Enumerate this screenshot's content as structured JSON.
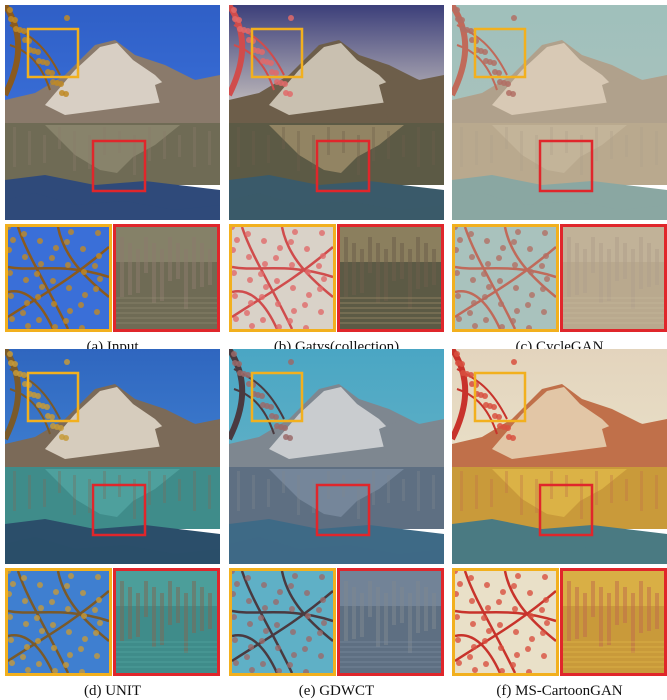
{
  "figure": {
    "captions": {
      "a": "(a) Input",
      "b": "(b) Gatys(collection)",
      "c": "(c) CycleGAN",
      "d": "(d) UNIT",
      "e": "(e) GDWCT",
      "f": "(f) MS-CartoonGAN"
    },
    "palettes": {
      "a": {
        "sky": "#3a6fd8",
        "skyTop": "#2f5fc6",
        "mount": "#d8cfc4",
        "mountShade": "#8a7a6b",
        "water": "#6f6b55",
        "reflect": "#8e8a70",
        "fore": "#2f4a7a",
        "tree": "#8a5a1e",
        "leaves": "#c08a25"
      },
      "b": {
        "sky": "#d9d2c8",
        "skyTop": "#3c3f7a",
        "mount": "#c9c0b0",
        "mountShade": "#6d5e4a",
        "water": "#5c5a45",
        "reflect": "#a08e6a",
        "fore": "#3a5a6a",
        "tree": "#d04c4c",
        "leaves": "#e06a6a"
      },
      "c": {
        "sky": "#a9c2bd",
        "skyTop": "#9fc0bb",
        "mount": "#d8c9b5",
        "mountShade": "#b0a18c",
        "water": "#b9a98e",
        "reflect": "#c5b79c",
        "fore": "#8aa7a2",
        "tree": "#c06a5a",
        "leaves": "#b26f64"
      },
      "d": {
        "sky": "#3f7fd0",
        "skyTop": "#2f66bf",
        "mount": "#d6ccbd",
        "mountShade": "#7b6a58",
        "water": "#3f8c8a",
        "reflect": "#53a5a1",
        "fore": "#2b4e6a",
        "tree": "#7a5a2a",
        "leaves": "#c59a3a"
      },
      "e": {
        "sky": "#5fb0c6",
        "skyTop": "#4aa6c4",
        "mount": "#c9cccf",
        "mountShade": "#7e8790",
        "water": "#5e6f82",
        "reflect": "#7a8ca0",
        "fore": "#3e6a86",
        "tree": "#4a3a40",
        "leaves": "#9a6a6a"
      },
      "f": {
        "sky": "#e9e0c8",
        "skyTop": "#e3d4bd",
        "mount": "#e2c6a6",
        "mountShade": "#c0704a",
        "water": "#c99a3a",
        "reflect": "#e0b84a",
        "fore": "#4a7a82",
        "tree": "#c8332b",
        "leaves": "#d85040"
      }
    }
  }
}
